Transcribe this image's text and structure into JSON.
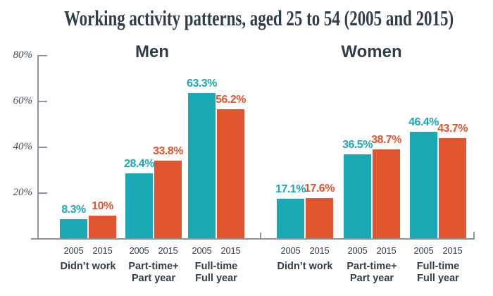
{
  "title": "Working activity patterns, aged 25 to 54 (2005 and 2015)",
  "colors": {
    "series_2005": "#1aa8b4",
    "series_2015": "#e0552d",
    "heading": "#2f3e4c",
    "axis": "#8d969e",
    "ytick_label": "#3e4a58"
  },
  "chart_data": {
    "type": "bar",
    "title": "Working activity patterns, aged 25 to 54 (2005 and 2015)",
    "xlabel": "",
    "ylabel": "",
    "ylim": [
      0,
      80
    ],
    "grid": false,
    "legend_position": "none",
    "yticks": [
      {
        "value": 80,
        "label": "80%"
      },
      {
        "value": 60,
        "label": "60%"
      },
      {
        "value": 40,
        "label": "40%"
      },
      {
        "value": 20,
        "label": "20%"
      }
    ],
    "series_names": [
      "2005",
      "2015"
    ],
    "panels": [
      {
        "title": "Men",
        "categories": [
          {
            "label_lines": [
              "Didn’t work"
            ],
            "values": [
              8.3,
              10
            ],
            "value_labels": [
              "8.3%",
              "10%"
            ]
          },
          {
            "label_lines": [
              "Part-time+",
              "Part year"
            ],
            "values": [
              28.4,
              33.8
            ],
            "value_labels": [
              "28.4%",
              "33.8%"
            ]
          },
          {
            "label_lines": [
              "Full-time",
              "Full year"
            ],
            "values": [
              63.3,
              56.2
            ],
            "value_labels": [
              "63.3%",
              "56.2%"
            ]
          }
        ]
      },
      {
        "title": "Women",
        "categories": [
          {
            "label_lines": [
              "Didn’t work"
            ],
            "values": [
              17.1,
              17.6
            ],
            "value_labels": [
              "17.1%",
              "17.6%"
            ]
          },
          {
            "label_lines": [
              "Part-time+",
              "Part year"
            ],
            "values": [
              36.5,
              38.7
            ],
            "value_labels": [
              "36.5%",
              "38.7%"
            ]
          },
          {
            "label_lines": [
              "Full-time",
              "Full year"
            ],
            "values": [
              46.4,
              43.7
            ],
            "value_labels": [
              "46.4%",
              "43.7%"
            ]
          }
        ]
      }
    ]
  }
}
